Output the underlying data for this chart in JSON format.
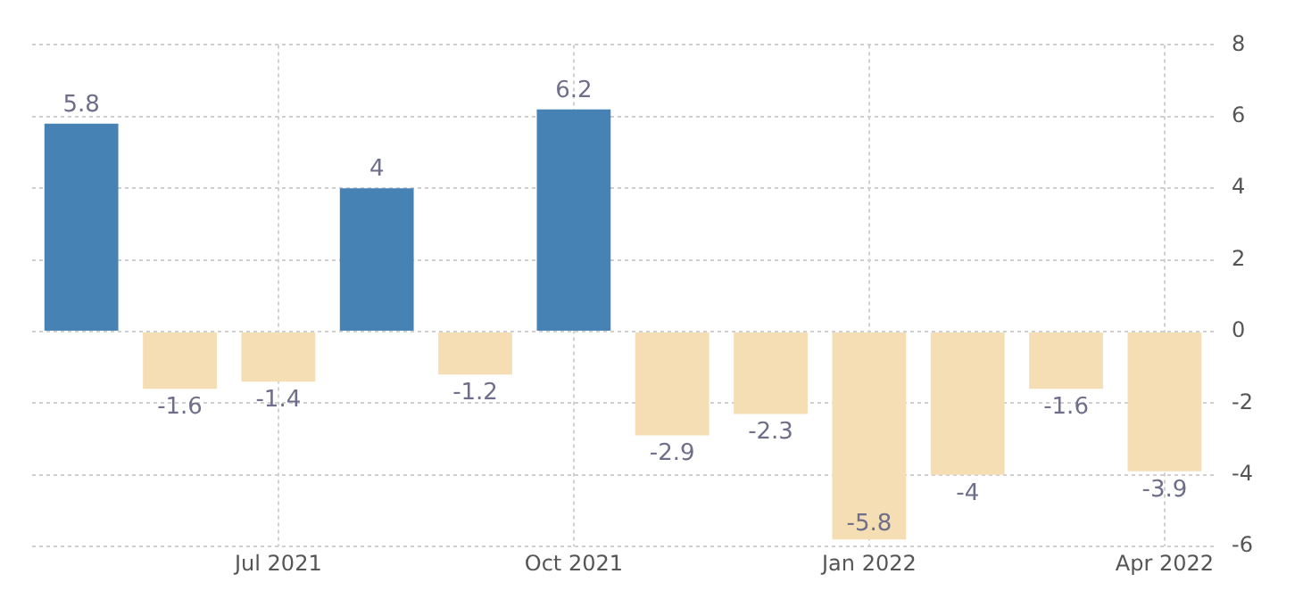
{
  "chart_data": {
    "type": "bar",
    "categories": [
      null,
      null,
      "Jul 2021",
      null,
      null,
      "Oct 2021",
      null,
      null,
      "Jan 2022",
      null,
      null,
      "Apr 2022"
    ],
    "values": [
      5.8,
      -1.6,
      -1.4,
      4,
      -1.2,
      6.2,
      -2.9,
      -2.3,
      -5.8,
      -4,
      -1.6,
      -3.9
    ],
    "colors": [
      "#4682b4",
      "#f5deb3",
      "#f5deb3",
      "#4682b4",
      "#f5deb3",
      "#4682b4",
      "#f5deb3",
      "#f5deb3",
      "#f5deb3",
      "#f5deb3",
      "#f5deb3",
      "#f5deb3"
    ],
    "ylim": [
      -6,
      8
    ],
    "yticks": [
      -6,
      -4,
      -2,
      0,
      2,
      4,
      6,
      8
    ],
    "grid": true,
    "legend": false,
    "data_labels": true
  }
}
